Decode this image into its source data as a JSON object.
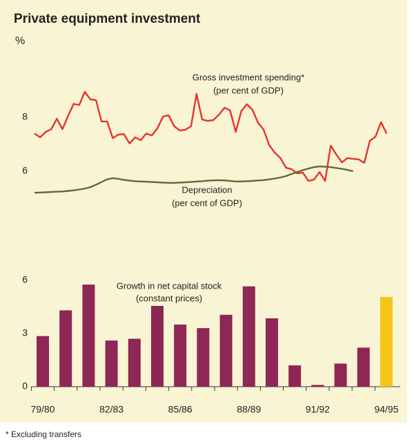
{
  "title": "Private equipment investment",
  "unit": "%",
  "footnote": "* Excluding transfers",
  "chart_data": [
    {
      "type": "line",
      "ylim": [
        5,
        9.5
      ],
      "yticks": [
        6,
        8
      ],
      "series": [
        {
          "name": "Gross investment spending*",
          "sublabel": "(per cent of GDP)",
          "color": "#e8322d",
          "values": [
            7.4,
            7.26,
            7.46,
            7.56,
            7.95,
            7.56,
            8.05,
            8.5,
            8.46,
            8.95,
            8.67,
            8.64,
            7.85,
            7.85,
            7.23,
            7.36,
            7.38,
            7.03,
            7.26,
            7.15,
            7.4,
            7.33,
            7.6,
            8.03,
            8.08,
            7.67,
            7.51,
            7.54,
            7.67,
            8.87,
            7.92,
            7.87,
            7.9,
            8.1,
            8.36,
            8.26,
            7.46,
            8.23,
            8.49,
            8.28,
            7.8,
            7.54,
            6.97,
            6.69,
            6.49,
            6.13,
            6.08,
            5.92,
            5.95,
            5.64,
            5.69,
            5.97,
            5.64,
            6.95,
            6.62,
            6.33,
            6.49,
            6.46,
            6.44,
            6.31,
            7.13,
            7.28,
            7.82,
            7.4
          ]
        },
        {
          "name": "Depreciation",
          "sublabel": "(per cent of GDP)",
          "color": "#5f6a3a",
          "values": [
            5.2,
            5.21,
            5.22,
            5.23,
            5.24,
            5.25,
            5.27,
            5.29,
            5.32,
            5.36,
            5.41,
            5.5,
            5.6,
            5.7,
            5.74,
            5.72,
            5.68,
            5.65,
            5.63,
            5.62,
            5.61,
            5.6,
            5.59,
            5.58,
            5.57,
            5.57,
            5.58,
            5.59,
            5.6,
            5.62,
            5.63,
            5.65,
            5.66,
            5.67,
            5.66,
            5.64,
            5.62,
            5.62,
            5.63,
            5.64,
            5.66,
            5.67,
            5.7,
            5.73,
            5.77,
            5.82,
            5.9,
            5.97,
            6.04,
            6.1,
            6.15,
            6.18,
            6.17,
            6.15,
            6.12,
            6.09,
            6.05,
            6.0,
            null,
            null,
            null,
            null,
            null,
            null
          ]
        }
      ]
    },
    {
      "type": "bar",
      "label": [
        "Growth in net capital stock",
        "(constant prices)"
      ],
      "categories": [
        "79/80",
        null,
        null,
        "82/83",
        null,
        null,
        "85/86",
        null,
        null,
        "88/89",
        null,
        null,
        "91/92",
        null,
        null,
        "94/95"
      ],
      "values": [
        2.85,
        4.3,
        5.75,
        2.6,
        2.7,
        4.55,
        3.5,
        3.3,
        4.05,
        5.65,
        3.85,
        1.2,
        0.1,
        1.3,
        2.2,
        5.05
      ],
      "colors": [
        "#8e2656",
        "#8e2656",
        "#8e2656",
        "#8e2656",
        "#8e2656",
        "#8e2656",
        "#8e2656",
        "#8e2656",
        "#8e2656",
        "#8e2656",
        "#8e2656",
        "#8e2656",
        "#8e2656",
        "#8e2656",
        "#8e2656",
        "#f5c518"
      ],
      "ylim": [
        0,
        7
      ],
      "yticks": [
        0,
        3,
        6
      ]
    }
  ]
}
